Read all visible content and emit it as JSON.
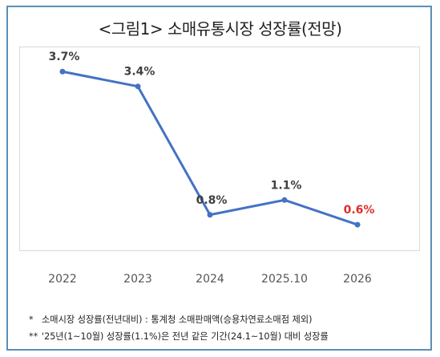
{
  "title": "<그림1> 소매유통시장 성장률(전망)",
  "colors": {
    "line": "#4472c4",
    "marker": "#4472c4",
    "highlight_label": "#e02b2b",
    "frame": "#5b8fb6"
  },
  "chart_data": {
    "type": "line",
    "title": "<그림1> 소매유통시장 성장률(전망)",
    "categories": [
      "2022",
      "2023",
      "2024",
      "2025.10",
      "2026"
    ],
    "values": [
      3.7,
      3.4,
      0.8,
      1.1,
      0.6
    ],
    "data_labels": [
      "3.7%",
      "3.4%",
      "0.8%",
      "1.1%",
      "0.6%"
    ],
    "highlight_index": 4,
    "ylim": [
      0,
      4.5
    ],
    "xlabel": "",
    "ylabel": "",
    "grid": false,
    "legend": "none"
  },
  "footnotes": [
    {
      "mark": "*",
      "text": "소매시장 성장률(전년대비) : 통계청 소매판매액(승용차연료소매점 제외)"
    },
    {
      "mark": "**",
      "text": "'25년(1~10월) 성장률(1.1%)은 전년 같은 기간(24.1~10월) 대비 성장률"
    }
  ]
}
